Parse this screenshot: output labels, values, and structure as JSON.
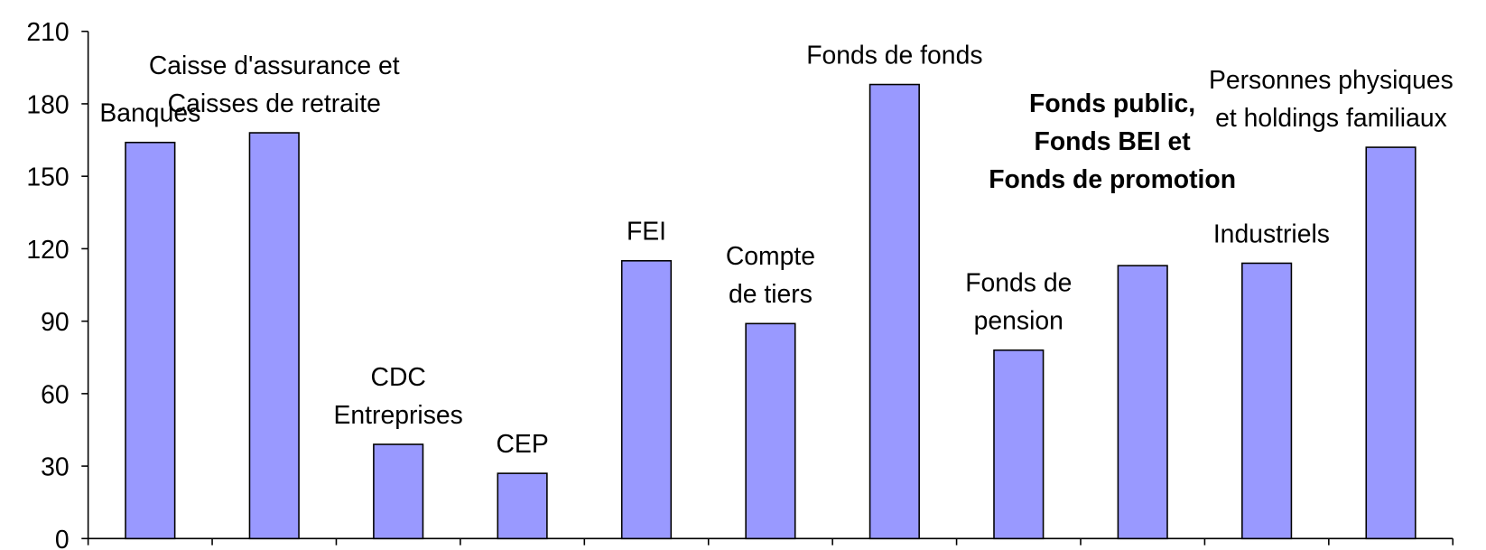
{
  "chart_data": {
    "type": "bar",
    "categories": [
      "Banques",
      "Caisse d'assurance et\nCaisses de retraite",
      "CDC\nEntreprises",
      "CEP",
      "FEI",
      "Compte\nde tiers",
      "Fonds de fonds",
      "Fonds de\npension",
      "Fonds public,\nFonds BEI et\nFonds de promotion",
      "Industriels",
      "Personnes physiques\net holdings familiaux"
    ],
    "values": [
      164,
      168,
      39,
      27,
      115,
      89,
      188,
      78,
      113,
      114,
      162
    ],
    "bold_labels": [
      false,
      false,
      false,
      false,
      false,
      false,
      false,
      false,
      true,
      false,
      false
    ],
    "color": "#9999ff",
    "ylim": [
      0,
      210
    ],
    "yticks": [
      0,
      30,
      60,
      90,
      120,
      150,
      180,
      210
    ]
  }
}
